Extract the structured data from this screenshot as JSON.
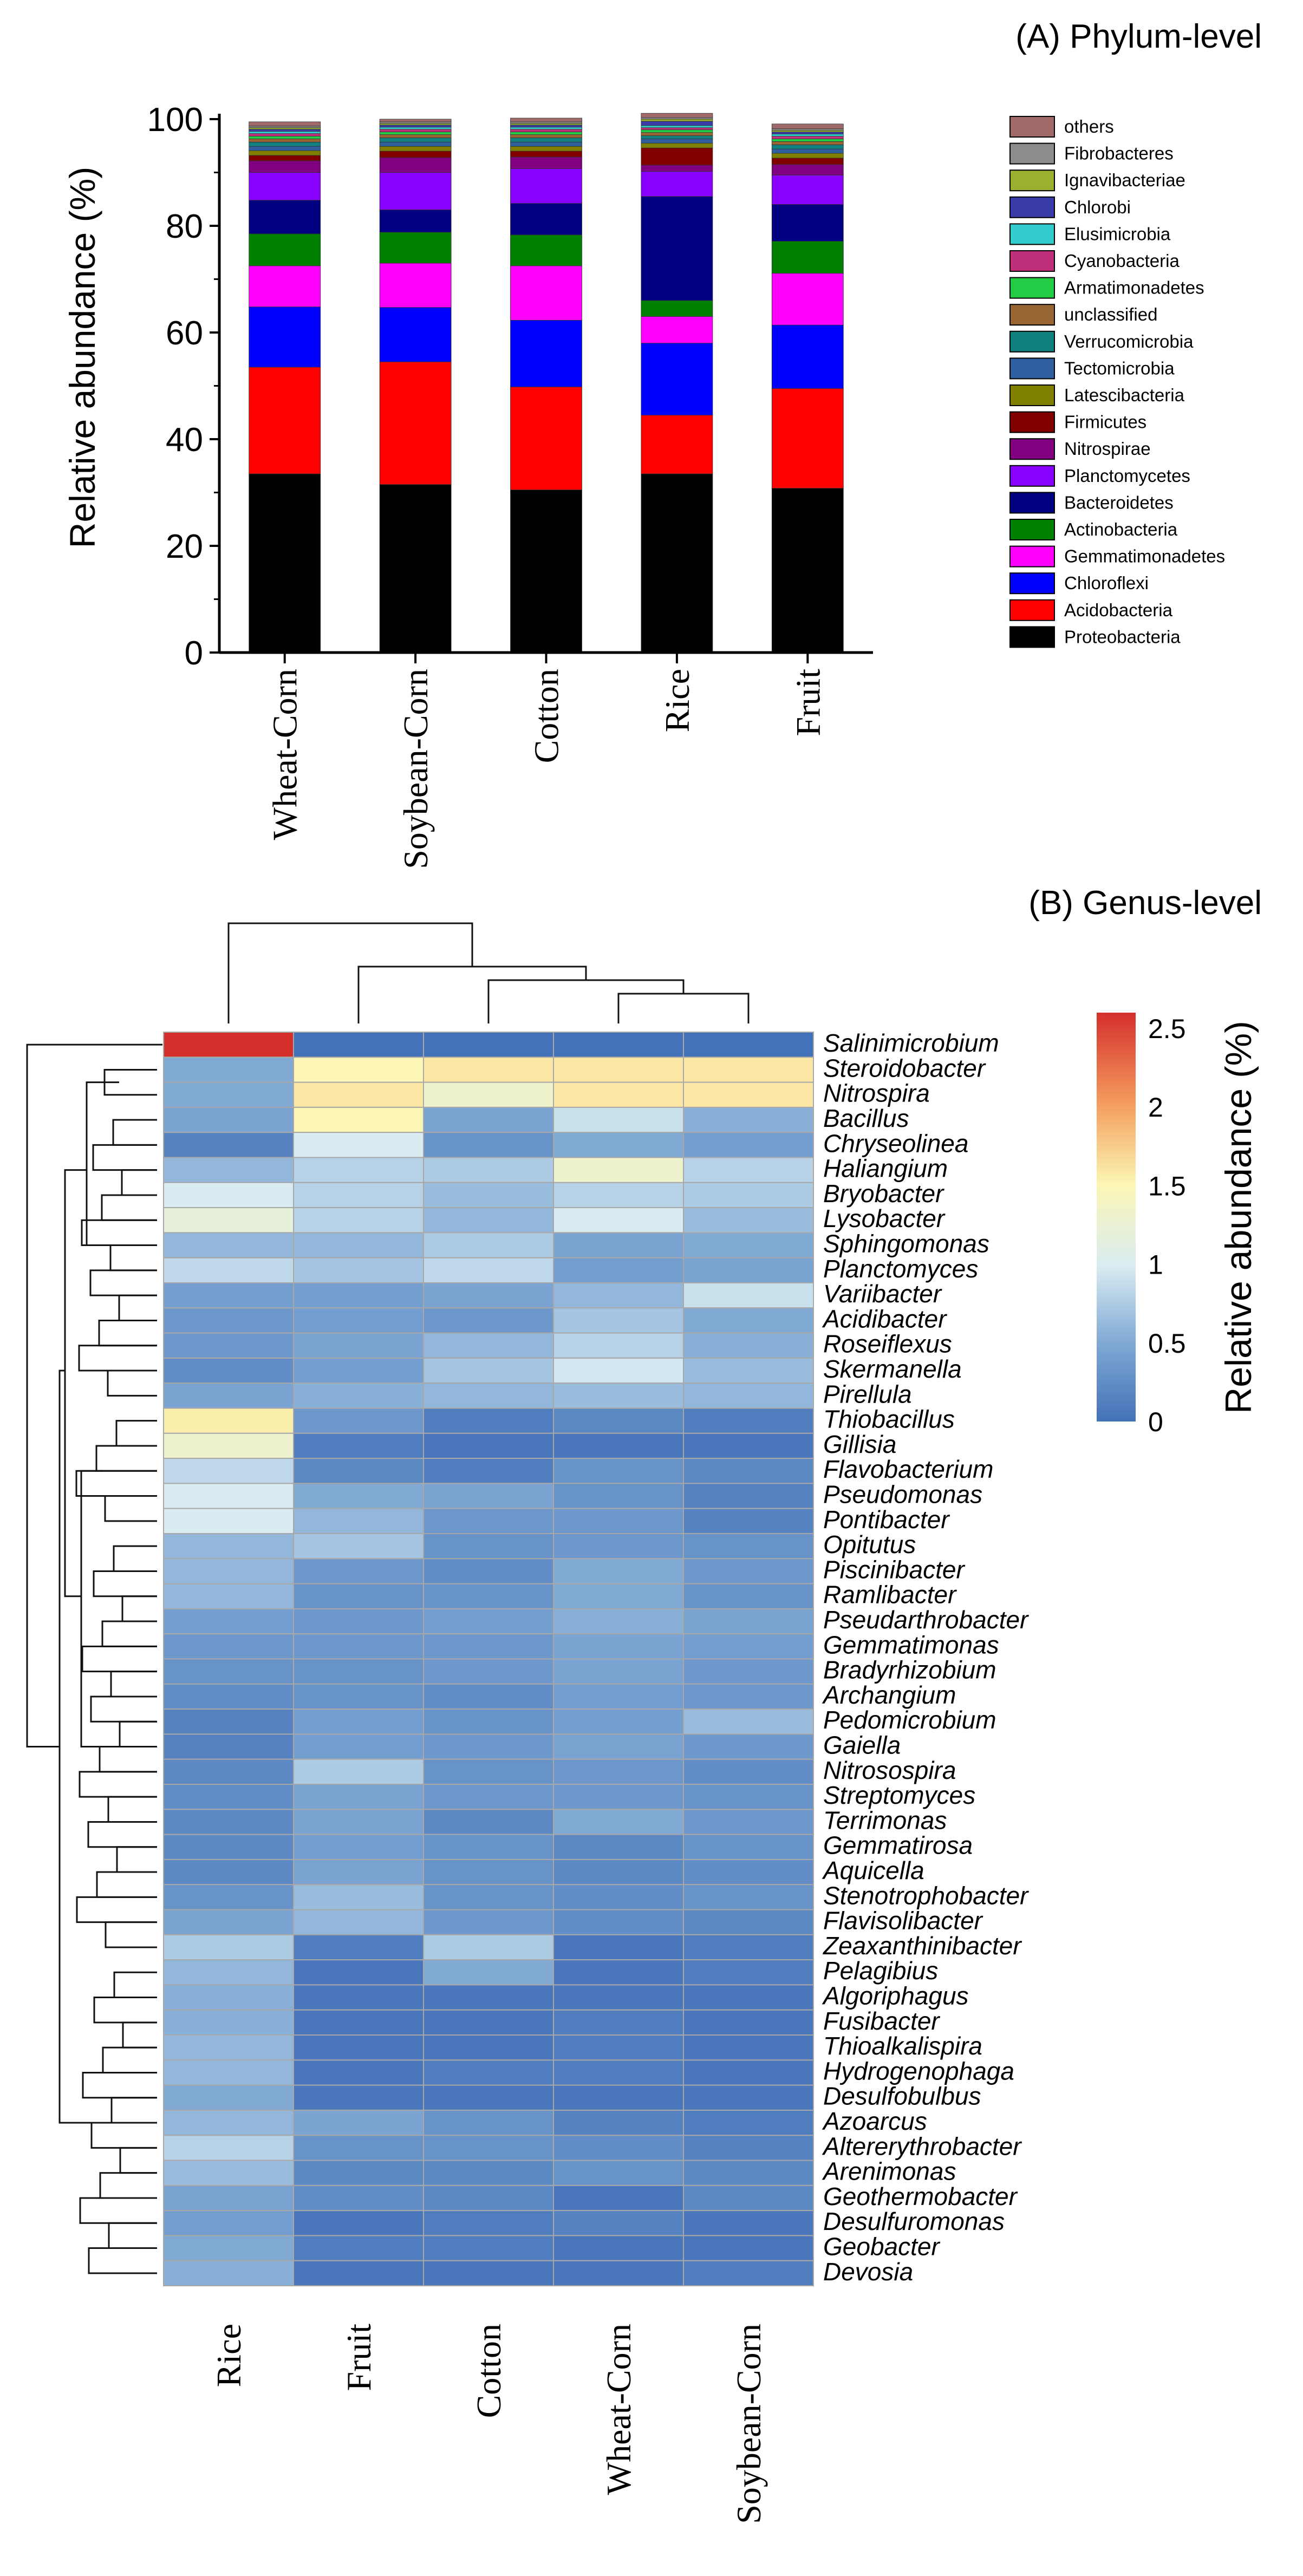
{
  "chart_data": [
    {
      "type": "bar",
      "stacked": true,
      "title": "(A) Phylum-level",
      "ylabel": "Relative abundance (%)",
      "xlabel": "",
      "ylim": [
        0,
        100
      ],
      "yticks": [
        "0",
        "20",
        "40",
        "60",
        "80",
        "100"
      ],
      "categories": [
        "Wheat-Corn",
        "Soybean-Corn",
        "Cotton",
        "Rice",
        "Fruit"
      ],
      "legend_entries": [
        "others",
        "Fibrobacteres",
        "Ignavibacteriae",
        "Chlorobi",
        "Elusimicrobia",
        "Cyanobacteria",
        "Armatimonadetes",
        "unclassified",
        "Verrucomicrobia",
        "Tectomicrobia",
        "Latescibacteria",
        "Firmicutes",
        "Nitrospirae",
        "Planctomycetes",
        "Bacteroidetes",
        "Actinobacteria",
        "Gemmatimonadetes",
        "Chloroflexi",
        "Acidobacteria",
        "Proteobacteria"
      ],
      "series": [
        {
          "name": "Proteobacteria",
          "color": "#000000",
          "values": [
            33.5,
            31.5,
            30.5,
            33.5,
            30.8
          ]
        },
        {
          "name": "Acidobacteria",
          "color": "#ff0000",
          "values": [
            20.0,
            23.0,
            19.3,
            11.0,
            18.7
          ]
        },
        {
          "name": "Chloroflexi",
          "color": "#0000ff",
          "values": [
            11.3,
            10.2,
            12.5,
            13.5,
            11.9
          ]
        },
        {
          "name": "Gemmatimonadetes",
          "color": "#ff00ff",
          "values": [
            7.7,
            8.3,
            10.2,
            5.0,
            9.7
          ]
        },
        {
          "name": "Actinobacteria",
          "color": "#008000",
          "values": [
            6.0,
            5.8,
            5.8,
            3.0,
            6.0
          ]
        },
        {
          "name": "Bacteroidetes",
          "color": "#000080",
          "values": [
            6.3,
            4.2,
            5.9,
            19.5,
            6.9
          ]
        },
        {
          "name": "Planctomycetes",
          "color": "#8a00ff",
          "values": [
            5.2,
            7.0,
            6.5,
            4.7,
            5.5
          ]
        },
        {
          "name": "Nitrospirae",
          "color": "#800080",
          "values": [
            2.2,
            2.8,
            2.2,
            1.2,
            2.0
          ]
        },
        {
          "name": "Firmicutes",
          "color": "#800000",
          "values": [
            1.0,
            1.2,
            1.1,
            3.2,
            1.2
          ]
        },
        {
          "name": "Latescibacteria",
          "color": "#808000",
          "values": [
            0.9,
            0.9,
            0.9,
            0.9,
            0.9
          ]
        },
        {
          "name": "Tectomicrobia",
          "color": "#2f5f9f",
          "values": [
            0.8,
            0.8,
            0.8,
            0.8,
            0.8
          ]
        },
        {
          "name": "Verrucomicrobia",
          "color": "#108080",
          "values": [
            0.8,
            0.8,
            0.8,
            0.6,
            0.8
          ]
        },
        {
          "name": "unclassified",
          "color": "#996633",
          "values": [
            0.6,
            0.6,
            0.6,
            0.6,
            0.6
          ]
        },
        {
          "name": "Armatimonadetes",
          "color": "#22cc44",
          "values": [
            0.5,
            0.5,
            0.5,
            0.5,
            0.5
          ]
        },
        {
          "name": "Cyanobacteria",
          "color": "#c0307a",
          "values": [
            0.5,
            0.5,
            0.5,
            0.4,
            0.5
          ]
        },
        {
          "name": "Elusimicrobia",
          "color": "#33cccc",
          "values": [
            0.4,
            0.4,
            0.4,
            0.4,
            0.4
          ]
        },
        {
          "name": "Chlorobi",
          "color": "#3b3ba8",
          "values": [
            0.4,
            0.4,
            0.4,
            0.8,
            0.4
          ]
        },
        {
          "name": "Ignavibacteriae",
          "color": "#9ab130",
          "values": [
            0.3,
            0.3,
            0.3,
            0.4,
            0.3
          ]
        },
        {
          "name": "Fibrobacteres",
          "color": "#8c8c8c",
          "values": [
            0.3,
            0.3,
            0.3,
            0.3,
            0.3
          ]
        },
        {
          "name": "others",
          "color": "#a06a6a",
          "values": [
            0.8,
            0.5,
            0.7,
            0.8,
            0.9
          ]
        }
      ]
    },
    {
      "type": "heatmap",
      "title": "(B) Genus-level",
      "colorbar_label": "Relative abundance (%)",
      "colorbar_range": [
        0,
        2.6
      ],
      "colorbar_ticks": [
        "0",
        "0.5",
        "1",
        "1.5",
        "2",
        "2.5"
      ],
      "columns": [
        "Rice",
        "Fruit",
        "Cotton",
        "Wheat-Corn",
        "Soybean-Corn"
      ],
      "rows": [
        "Salinimicrobium",
        "Steroidobacter",
        "Nitrospira",
        "Bacillus",
        "Chryseolinea",
        "Haliangium",
        "Bryobacter",
        "Lysobacter",
        "Sphingomonas",
        "Planctomyces",
        "Variibacter",
        "Acidibacter",
        "Roseiflexus",
        "Skermanella",
        "Pirellula",
        "Thiobacillus",
        "Gillisia",
        "Flavobacterium",
        "Pseudomonas",
        "Pontibacter",
        "Opitutus",
        "Piscinibacter",
        "Ramlibacter",
        "Pseudarthrobacter",
        "Gemmatimonas",
        "Bradyrhizobium",
        "Archangium",
        "Pedomicrobium",
        "Gaiella",
        "Nitrosospira",
        "Streptomyces",
        "Terrimonas",
        "Gemmatirosa",
        "Aquicella",
        "Stenotrophobacter",
        "Flavisolibacter",
        "Zeaxanthinibacter",
        "Pelagibius",
        "Algoriphagus",
        "Fusibacter",
        "Thioalkalispira",
        "Hydrogenophaga",
        "Desulfobulbus",
        "Azoarcus",
        "Altererythrobacter",
        "Arenimonas",
        "Geothermobacter",
        "Desulfuromonas",
        "Geobacter",
        "Devosia"
      ],
      "values": [
        [
          2.6,
          0.0,
          0.0,
          0.0,
          0.0
        ],
        [
          0.5,
          1.5,
          1.6,
          1.6,
          1.6
        ],
        [
          0.5,
          1.6,
          1.3,
          1.6,
          1.6
        ],
        [
          0.45,
          1.5,
          0.45,
          0.9,
          0.55
        ],
        [
          0.15,
          1.0,
          0.3,
          0.5,
          0.4
        ],
        [
          0.6,
          0.8,
          0.75,
          1.3,
          0.8
        ],
        [
          1.0,
          0.8,
          0.65,
          0.8,
          0.75
        ],
        [
          1.2,
          0.8,
          0.6,
          1.0,
          0.65
        ],
        [
          0.6,
          0.6,
          0.75,
          0.45,
          0.5
        ],
        [
          0.85,
          0.7,
          0.85,
          0.4,
          0.45
        ],
        [
          0.4,
          0.4,
          0.45,
          0.6,
          0.9
        ],
        [
          0.35,
          0.4,
          0.35,
          0.7,
          0.5
        ],
        [
          0.35,
          0.45,
          0.6,
          0.8,
          0.55
        ],
        [
          0.25,
          0.4,
          0.7,
          0.95,
          0.65
        ],
        [
          0.45,
          0.55,
          0.6,
          0.65,
          0.6
        ],
        [
          1.55,
          0.35,
          0.1,
          0.2,
          0.1
        ],
        [
          1.3,
          0.1,
          0.05,
          0.05,
          0.05
        ],
        [
          0.85,
          0.2,
          0.1,
          0.3,
          0.2
        ],
        [
          1.0,
          0.5,
          0.45,
          0.3,
          0.15
        ],
        [
          1.0,
          0.6,
          0.35,
          0.35,
          0.15
        ],
        [
          0.6,
          0.7,
          0.3,
          0.35,
          0.3
        ],
        [
          0.6,
          0.35,
          0.25,
          0.5,
          0.35
        ],
        [
          0.6,
          0.3,
          0.3,
          0.5,
          0.3
        ],
        [
          0.4,
          0.35,
          0.4,
          0.55,
          0.45
        ],
        [
          0.35,
          0.35,
          0.35,
          0.45,
          0.4
        ],
        [
          0.3,
          0.3,
          0.35,
          0.45,
          0.35
        ],
        [
          0.25,
          0.3,
          0.25,
          0.4,
          0.35
        ],
        [
          0.15,
          0.4,
          0.3,
          0.4,
          0.65
        ],
        [
          0.15,
          0.4,
          0.35,
          0.45,
          0.35
        ],
        [
          0.2,
          0.75,
          0.3,
          0.35,
          0.25
        ],
        [
          0.25,
          0.45,
          0.35,
          0.35,
          0.3
        ],
        [
          0.2,
          0.45,
          0.2,
          0.5,
          0.35
        ],
        [
          0.2,
          0.4,
          0.3,
          0.2,
          0.3
        ],
        [
          0.2,
          0.45,
          0.3,
          0.2,
          0.25
        ],
        [
          0.3,
          0.65,
          0.3,
          0.25,
          0.3
        ],
        [
          0.45,
          0.6,
          0.35,
          0.25,
          0.2
        ],
        [
          0.75,
          0.1,
          0.75,
          0.05,
          0.1
        ],
        [
          0.6,
          0.05,
          0.5,
          0.05,
          0.1
        ],
        [
          0.55,
          0.05,
          0.05,
          0.05,
          0.05
        ],
        [
          0.55,
          0.05,
          0.05,
          0.1,
          0.05
        ],
        [
          0.6,
          0.05,
          0.05,
          0.1,
          0.05
        ],
        [
          0.6,
          0.05,
          0.1,
          0.1,
          0.05
        ],
        [
          0.5,
          0.05,
          0.05,
          0.05,
          0.05
        ],
        [
          0.6,
          0.45,
          0.3,
          0.15,
          0.1
        ],
        [
          0.8,
          0.3,
          0.3,
          0.25,
          0.15
        ],
        [
          0.65,
          0.2,
          0.2,
          0.3,
          0.2
        ],
        [
          0.45,
          0.25,
          0.2,
          0.05,
          0.2
        ],
        [
          0.4,
          0.05,
          0.1,
          0.15,
          0.05
        ],
        [
          0.5,
          0.1,
          0.1,
          0.05,
          0.05
        ],
        [
          0.55,
          0.05,
          0.05,
          0.05,
          0.1
        ]
      ]
    }
  ]
}
